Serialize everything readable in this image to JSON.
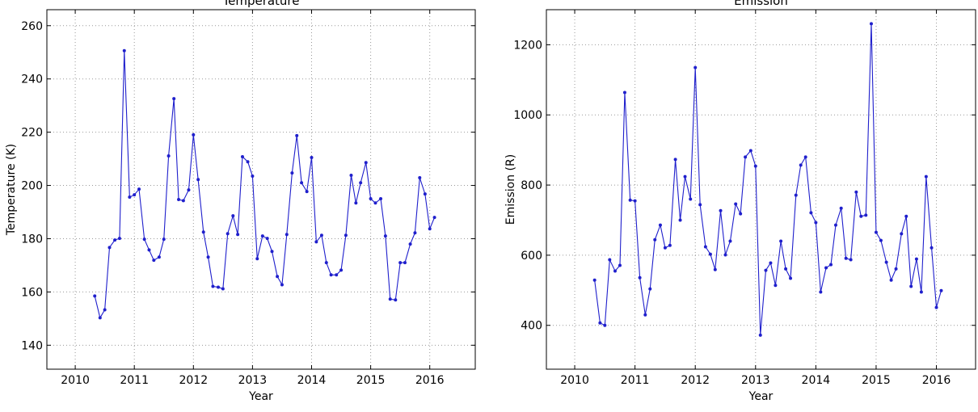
{
  "chart_data": [
    {
      "type": "line",
      "title": "Temperature",
      "xlabel": "Year",
      "ylabel": "Temperature (K)",
      "xlim": [
        2009.52,
        2016.77
      ],
      "ylim": [
        131,
        266
      ],
      "xticks": [
        2010,
        2011,
        2012,
        2013,
        2014,
        2015,
        2016
      ],
      "yticks": [
        140,
        160,
        180,
        200,
        220,
        240,
        260
      ],
      "grid": true,
      "x": [
        2010.33,
        2010.42,
        2010.5,
        2010.58,
        2010.67,
        2010.75,
        2010.83,
        2010.92,
        2011,
        2011.08,
        2011.17,
        2011.25,
        2011.33,
        2011.42,
        2011.5,
        2011.58,
        2011.67,
        2011.75,
        2011.83,
        2011.92,
        2012,
        2012.08,
        2012.17,
        2012.25,
        2012.33,
        2012.42,
        2012.5,
        2012.58,
        2012.67,
        2012.75,
        2012.83,
        2012.92,
        2013,
        2013.08,
        2013.17,
        2013.25,
        2013.33,
        2013.42,
        2013.5,
        2013.58,
        2013.67,
        2013.75,
        2013.83,
        2013.92,
        2014,
        2014.08,
        2014.17,
        2014.25,
        2014.33,
        2014.42,
        2014.5,
        2014.58,
        2014.67,
        2014.75,
        2014.83,
        2014.92,
        2015,
        2015.08,
        2015.17,
        2015.25,
        2015.33,
        2015.42,
        2015.5,
        2015.58,
        2015.67,
        2015.75,
        2015.83,
        2015.92,
        2016,
        2016.08
      ],
      "series": [
        {
          "color": "#1f1fcc",
          "values": [
            158.5,
            150.3,
            153.3,
            176.7,
            179.5,
            180.1,
            250.6,
            195.6,
            196.5,
            198.6,
            179.8,
            175.8,
            171.9,
            173.1,
            179.8,
            211.1,
            232.6,
            194.7,
            194.3,
            198.3,
            219,
            202.2,
            182.5,
            173.1,
            162.1,
            161.8,
            161.2,
            181.9,
            188.6,
            181.6,
            210.8,
            208.9,
            203.5,
            172.5,
            181,
            180.1,
            175.2,
            165.8,
            162.7,
            181.6,
            204.7,
            218.7,
            201,
            197.7,
            210.5,
            178.8,
            181.3,
            171,
            166.4,
            166.4,
            168.2,
            181.3,
            203.8,
            193.4,
            201,
            208.6,
            195,
            193.4,
            195,
            181,
            157.3,
            157,
            171,
            171,
            178,
            182.2,
            202.9,
            196.8,
            183.7,
            188
          ]
        }
      ]
    },
    {
      "type": "line",
      "title": "Emission",
      "xlabel": "Year",
      "ylabel": "Emission (R)",
      "xlim": [
        2009.53,
        2016.65
      ],
      "ylim": [
        275,
        1300
      ],
      "xticks": [
        2010,
        2011,
        2012,
        2013,
        2014,
        2015,
        2016
      ],
      "yticks": [
        400,
        600,
        800,
        1000,
        1200
      ],
      "grid": true,
      "x": [
        2010.33,
        2010.42,
        2010.5,
        2010.58,
        2010.67,
        2010.75,
        2010.83,
        2010.92,
        2011,
        2011.08,
        2011.17,
        2011.25,
        2011.33,
        2011.42,
        2011.5,
        2011.58,
        2011.67,
        2011.75,
        2011.83,
        2011.92,
        2012,
        2012.08,
        2012.17,
        2012.25,
        2012.33,
        2012.42,
        2012.5,
        2012.58,
        2012.67,
        2012.75,
        2012.83,
        2012.92,
        2013,
        2013.08,
        2013.17,
        2013.25,
        2013.33,
        2013.42,
        2013.5,
        2013.58,
        2013.67,
        2013.75,
        2013.83,
        2013.92,
        2014,
        2014.08,
        2014.17,
        2014.25,
        2014.33,
        2014.42,
        2014.5,
        2014.58,
        2014.67,
        2014.75,
        2014.83,
        2014.92,
        2015,
        2015.08,
        2015.17,
        2015.25,
        2015.33,
        2015.42,
        2015.5,
        2015.58,
        2015.67,
        2015.75,
        2015.83,
        2015.92,
        2016,
        2016.08
      ],
      "series": [
        {
          "color": "#1f1fcc",
          "values": [
            529,
            407,
            400,
            587,
            555,
            571,
            1064,
            757,
            755,
            536,
            430,
            504,
            644,
            686,
            621,
            628,
            873,
            700,
            824,
            760,
            1135,
            744,
            624,
            603,
            559,
            727,
            601,
            640,
            746,
            718,
            880,
            898,
            854,
            372,
            557,
            578,
            514,
            640,
            561,
            534,
            771,
            857,
            880,
            721,
            693,
            495,
            564,
            573,
            686,
            734,
            591,
            587,
            780,
            711,
            714,
            1260,
            665,
            642,
            580,
            529,
            561,
            661,
            711,
            511,
            589,
            495,
            824,
            621,
            451,
            499
          ]
        }
      ]
    }
  ]
}
